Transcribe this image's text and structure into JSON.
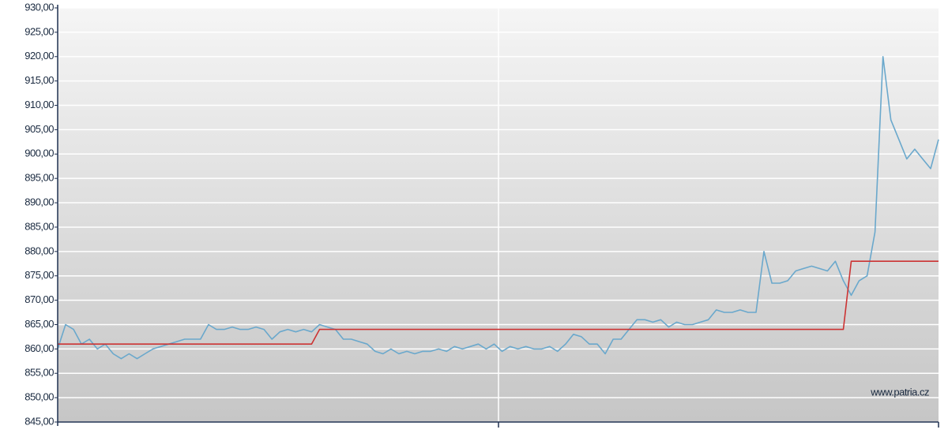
{
  "chart_data": {
    "type": "line",
    "annotation": "www.patria.cz",
    "ylim": [
      845,
      930
    ],
    "yticks": [
      {
        "value": 845,
        "label": "845,00"
      },
      {
        "value": 850,
        "label": "850,00"
      },
      {
        "value": 855,
        "label": "855,00"
      },
      {
        "value": 860,
        "label": "860,00"
      },
      {
        "value": 865,
        "label": "865,00"
      },
      {
        "value": 870,
        "label": "870,00"
      },
      {
        "value": 875,
        "label": "875,00"
      },
      {
        "value": 880,
        "label": "880,00"
      },
      {
        "value": 885,
        "label": "885,00"
      },
      {
        "value": 890,
        "label": "890,00"
      },
      {
        "value": 895,
        "label": "895,00"
      },
      {
        "value": 900,
        "label": "900,00"
      },
      {
        "value": 905,
        "label": "905,00"
      },
      {
        "value": 910,
        "label": "910,00"
      },
      {
        "value": 915,
        "label": "915,00"
      },
      {
        "value": 920,
        "label": "920,00"
      },
      {
        "value": 925,
        "label": "925,00"
      },
      {
        "value": 930,
        "label": "930,00"
      }
    ],
    "grid": true,
    "series": [
      {
        "color": "#6aa8cc",
        "values": [
          860,
          865,
          864,
          861,
          862,
          860,
          861,
          859,
          858,
          859,
          858,
          859,
          860,
          860.5,
          861,
          861.5,
          862,
          862,
          862,
          865,
          864,
          864,
          864.5,
          864,
          864,
          864.5,
          864,
          862,
          863.5,
          864,
          863.5,
          864,
          863.5,
          865,
          864.5,
          864,
          862,
          862,
          861.5,
          861,
          859.5,
          859,
          860,
          859,
          859.5,
          859,
          859.5,
          859.5,
          860,
          859.5,
          860.5,
          860,
          860.5,
          861,
          860,
          861,
          859.5,
          860.5,
          860,
          860.5,
          860,
          860,
          860.5,
          859.5,
          861,
          863,
          862.5,
          861,
          861,
          859,
          862,
          862,
          864,
          866,
          866,
          865.5,
          866,
          864.5,
          865.5,
          865,
          865,
          865.5,
          866,
          868,
          867.5,
          867.5,
          868,
          867.5,
          867.5,
          880,
          873.5,
          873.5,
          874,
          876,
          876.5,
          877,
          876.5,
          876,
          878,
          874,
          871,
          874,
          875,
          884,
          920,
          907,
          903,
          899,
          901,
          899,
          897,
          903
        ]
      },
      {
        "color": "#cc3333",
        "values": [
          861,
          861,
          861,
          861,
          861,
          861,
          861,
          861,
          861,
          861,
          861,
          861,
          861,
          861,
          861,
          861,
          861,
          861,
          861,
          861,
          861,
          861,
          861,
          861,
          861,
          861,
          861,
          861,
          861,
          861,
          861,
          861,
          861,
          864,
          864,
          864,
          864,
          864,
          864,
          864,
          864,
          864,
          864,
          864,
          864,
          864,
          864,
          864,
          864,
          864,
          864,
          864,
          864,
          864,
          864,
          864,
          864,
          864,
          864,
          864,
          864,
          864,
          864,
          864,
          864,
          864,
          864,
          864,
          864,
          864,
          864,
          864,
          864,
          864,
          864,
          864,
          864,
          864,
          864,
          864,
          864,
          864,
          864,
          864,
          864,
          864,
          864,
          864,
          864,
          864,
          864,
          864,
          864,
          864,
          864,
          864,
          864,
          864,
          864,
          864,
          878,
          878,
          878,
          878,
          878,
          878,
          878,
          878,
          878,
          878,
          878,
          878
        ]
      }
    ]
  }
}
